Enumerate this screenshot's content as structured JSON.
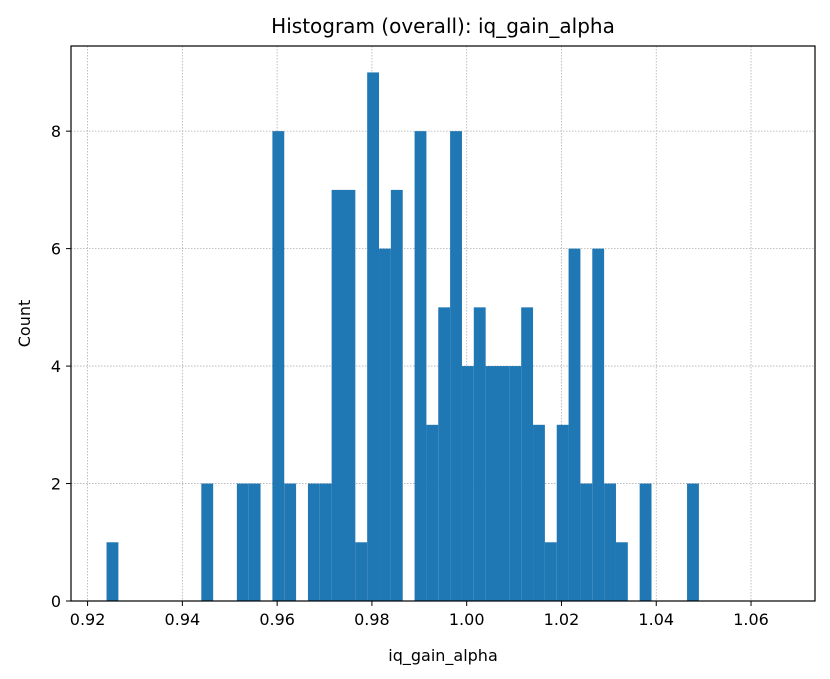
{
  "chart_data": {
    "type": "bar",
    "title": "Histogram (overall): iq_gain_alpha",
    "xlabel": "iq_gain_alpha",
    "ylabel": "Count",
    "xlim": [
      0.9165,
      1.0735
    ],
    "ylim": [
      0,
      9.45
    ],
    "grid": true,
    "bar_color": "#1f77b4",
    "bin_start": 0.924,
    "bin_width": 0.0025,
    "values": [
      1,
      0,
      0,
      0,
      0,
      0,
      0,
      0,
      2,
      0,
      0,
      2,
      2,
      0,
      8,
      2,
      0,
      2,
      2,
      7,
      7,
      1,
      9,
      6,
      7,
      0,
      8,
      3,
      5,
      8,
      4,
      5,
      4,
      4,
      4,
      5,
      3,
      1,
      3,
      6,
      2,
      6,
      2,
      1,
      0,
      2,
      0,
      0,
      0,
      2
    ],
    "xticks": [
      0.92,
      0.94,
      0.96,
      0.98,
      1.0,
      1.02,
      1.04,
      1.06
    ],
    "xtick_labels": [
      "0.92",
      "0.94",
      "0.96",
      "0.98",
      "1.00",
      "1.02",
      "1.04",
      "1.06"
    ],
    "yticks": [
      0,
      2,
      4,
      6,
      8
    ],
    "ytick_labels": [
      "0",
      "2",
      "4",
      "6",
      "8"
    ]
  }
}
